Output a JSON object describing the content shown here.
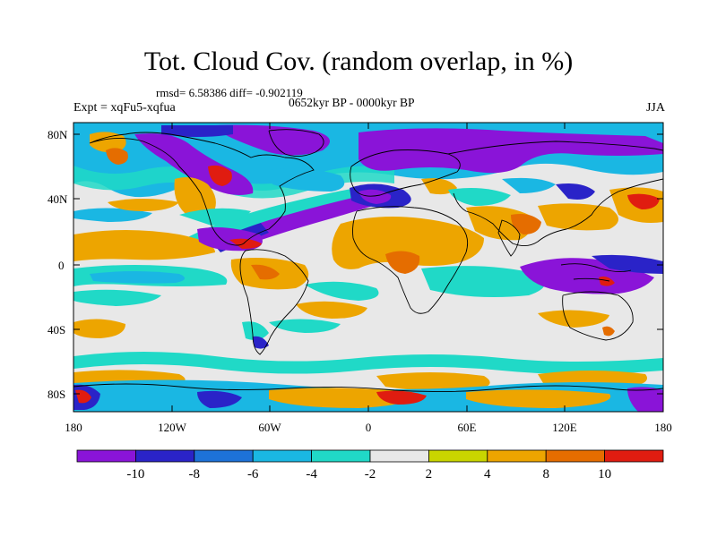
{
  "title": "Tot. Cloud Cov. (random overlap, in %)",
  "stats": "rmsd= 6.58386 diff= -0.902119",
  "period": "0652kyr BP - 0000kyr BP",
  "experiment": "Expt = xqFu5-xqfua",
  "season": "JJA",
  "lat_labels": [
    "80N",
    "40N",
    "0",
    "40S",
    "80S"
  ],
  "lon_labels": [
    "180",
    "120W",
    "60W",
    "0",
    "60E",
    "120E",
    "180"
  ],
  "colorbar": {
    "labels": [
      "-10",
      "-8",
      "-6",
      "-4",
      "-2",
      "2",
      "4",
      "8",
      "10"
    ],
    "colors": [
      "#8a14d8",
      "#2a23c8",
      "#1d72d8",
      "#1ab7e3",
      "#20d9c7",
      "#e8e8e8",
      "#c9d500",
      "#eda500",
      "#e56d00",
      "#e01c10"
    ]
  },
  "palette": {
    "background": "#e8e8e8",
    "deep_neg": "#8a14d8",
    "neg": "#2a23c8",
    "mid_neg": "#1d72d8",
    "light_neg": "#1ab7e3",
    "cyan": "#20d9c7",
    "yellow": "#c9d500",
    "orange": "#eda500",
    "dark_orange": "#e56d00",
    "red": "#e01c10"
  }
}
